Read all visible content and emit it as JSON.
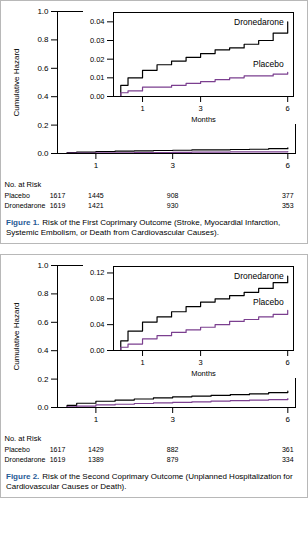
{
  "chart_data": [
    {
      "type": "line",
      "caption_label": "Figure 1.",
      "caption": "Risk of the First Coprimary Outcome (Stroke, Myocardial Infarction, Systemic Embolism, or Death from Cardiovascular Causes).",
      "y_label": "Cumulative Hazard",
      "xlim": [
        0,
        6.2
      ],
      "xticks": [
        1,
        3,
        6
      ],
      "ylim": [
        0,
        1
      ],
      "yticks": [
        {
          "value": 0,
          "label": "0.0"
        },
        0.2,
        0.4,
        0.6,
        0.8,
        {
          "value": 1,
          "label": "1.0"
        }
      ],
      "x": [
        0,
        0.25,
        0.5,
        1,
        1.5,
        2,
        2.5,
        3,
        3.5,
        4,
        4.5,
        5,
        5.5,
        6
      ],
      "series": [
        {
          "name": "Dronedarone",
          "color": "#000000",
          "values": [
            0,
            0.006,
            0.01,
            0.014,
            0.017,
            0.019,
            0.021,
            0.023,
            0.025,
            0.026,
            0.028,
            0.03,
            0.034,
            0.04
          ]
        },
        {
          "name": "Placebo",
          "color": "#7b3f8f",
          "values": [
            0,
            0.002,
            0.003,
            0.005,
            0.005,
            0.006,
            0.007,
            0.008,
            0.009,
            0.01,
            0.011,
            0.011,
            0.012,
            0.013
          ]
        }
      ],
      "inset": {
        "x_label": "Months",
        "xlim": [
          0,
          6.2
        ],
        "xticks": [
          1,
          3,
          6
        ],
        "ylim": [
          0,
          0.045
        ],
        "yticks": [
          {
            "value": 0,
            "label": "0.00"
          },
          0.01,
          0.02,
          0.03,
          0.04
        ]
      },
      "at_risk": {
        "title": "No. at Risk",
        "x": [
          0,
          1,
          3,
          6
        ],
        "rows": [
          {
            "name": "Placebo",
            "values": [
              1617,
              1445,
              908,
              377
            ]
          },
          {
            "name": "Dronedarone",
            "values": [
              1619,
              1421,
              930,
              353
            ]
          }
        ]
      }
    },
    {
      "type": "line",
      "caption_label": "Figure 2.",
      "caption": "Risk of the Second Coprimary Outcome (Unplanned Hospitalization for Cardiovascular Causes or Death).",
      "y_label": "Cumulative Hazard",
      "xlim": [
        0,
        6.2
      ],
      "xticks": [
        1,
        3,
        6
      ],
      "ylim": [
        0,
        1
      ],
      "yticks": [
        {
          "value": 0,
          "label": "0.0"
        },
        0.2,
        0.4,
        0.6,
        0.8,
        {
          "value": 1,
          "label": "1.0"
        }
      ],
      "x": [
        0,
        0.25,
        0.5,
        1,
        1.5,
        2,
        2.5,
        3,
        3.5,
        4,
        4.5,
        5,
        5.5,
        6
      ],
      "series": [
        {
          "name": "Dronedarone",
          "color": "#000000",
          "values": [
            0,
            0.015,
            0.03,
            0.044,
            0.052,
            0.06,
            0.068,
            0.075,
            0.08,
            0.085,
            0.09,
            0.096,
            0.105,
            0.115
          ]
        },
        {
          "name": "Placebo",
          "color": "#7b3f8f",
          "values": [
            0,
            0.005,
            0.01,
            0.018,
            0.023,
            0.028,
            0.032,
            0.036,
            0.04,
            0.045,
            0.048,
            0.052,
            0.056,
            0.062
          ]
        }
      ],
      "inset": {
        "x_label": "Months",
        "xlim": [
          0,
          6.2
        ],
        "xticks": [
          1,
          3,
          6
        ],
        "ylim": [
          0,
          0.13
        ],
        "yticks": [
          {
            "value": 0,
            "label": "0.00"
          },
          0.04,
          0.08,
          0.12
        ]
      },
      "at_risk": {
        "title": "No. at Risk",
        "x": [
          0,
          1,
          3,
          6
        ],
        "rows": [
          {
            "name": "Placebo",
            "values": [
              1617,
              1429,
              882,
              361
            ]
          },
          {
            "name": "Dronedarone",
            "values": [
              1619,
              1389,
              879,
              334
            ]
          }
        ]
      }
    }
  ]
}
